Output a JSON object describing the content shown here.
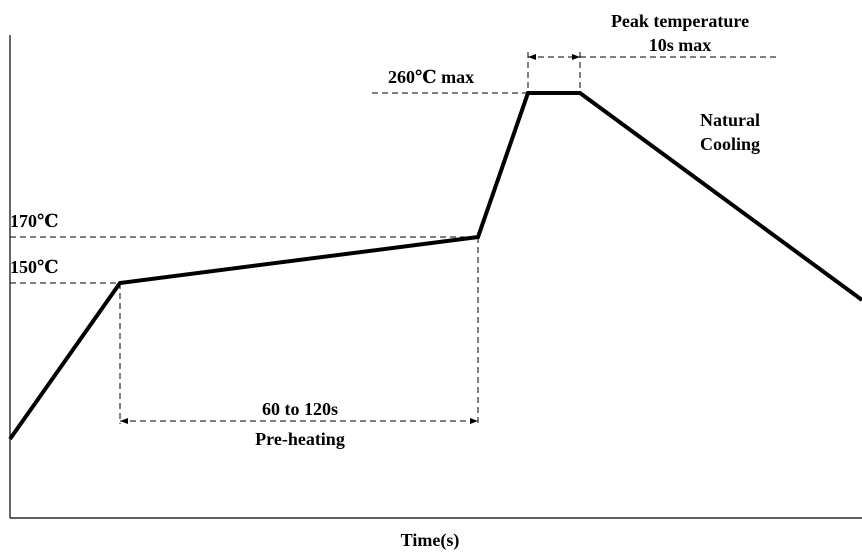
{
  "chart_data": {
    "type": "line",
    "title": "",
    "xlabel": "Time(s)",
    "ylabel": "",
    "profile_points": [
      {
        "phase": "start",
        "temperature_c": null
      },
      {
        "phase": "preheat_start",
        "temperature_c": 150
      },
      {
        "phase": "preheat_end",
        "temperature_c": 170
      },
      {
        "phase": "peak_start",
        "temperature_c": 260
      },
      {
        "phase": "peak_end",
        "temperature_c": 260
      },
      {
        "phase": "cooling",
        "temperature_c": null
      }
    ],
    "annotations": {
      "temp_150": "150℃",
      "temp_170": "170℃",
      "temp_260": "260℃ max",
      "peak_line1": "Peak temperature",
      "peak_line2": "10s max",
      "cooling_line1": "Natural",
      "cooling_line2": "Cooling",
      "preheat_line1": "60 to 120s",
      "preheat_line2": "Pre-heating"
    },
    "grid": false,
    "line_color": "#000000"
  }
}
